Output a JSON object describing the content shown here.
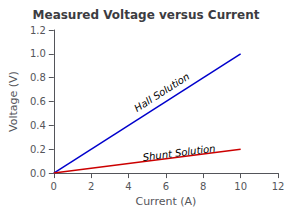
{
  "chart_data": {
    "type": "line",
    "title": "Measured Voltage versus Current",
    "xlabel": "Current (A)",
    "ylabel": "Voltage (V)",
    "xlim": [
      0,
      12
    ],
    "ylim": [
      0,
      1.2
    ],
    "xticks": [
      0,
      2,
      4,
      6,
      8,
      10,
      12
    ],
    "yticks": [
      {
        "value": 0.0,
        "label": "0.0"
      },
      0.2,
      0.4,
      0.6,
      0.8,
      {
        "value": 1.0,
        "label": "1.0"
      },
      1.2
    ],
    "grid": false,
    "series": [
      {
        "color": "#0000cc",
        "x": [
          0,
          10
        ],
        "values": [
          0,
          1.0
        ],
        "annotation": {
          "text": "Hall Solution",
          "x": 4.5,
          "y": 0.5
        }
      },
      {
        "color": "#cc0000",
        "x": [
          0,
          10
        ],
        "values": [
          0,
          0.2
        ],
        "annotation": {
          "text": "Shunt Solution",
          "x": 4.8,
          "y": 0.09
        }
      }
    ]
  }
}
